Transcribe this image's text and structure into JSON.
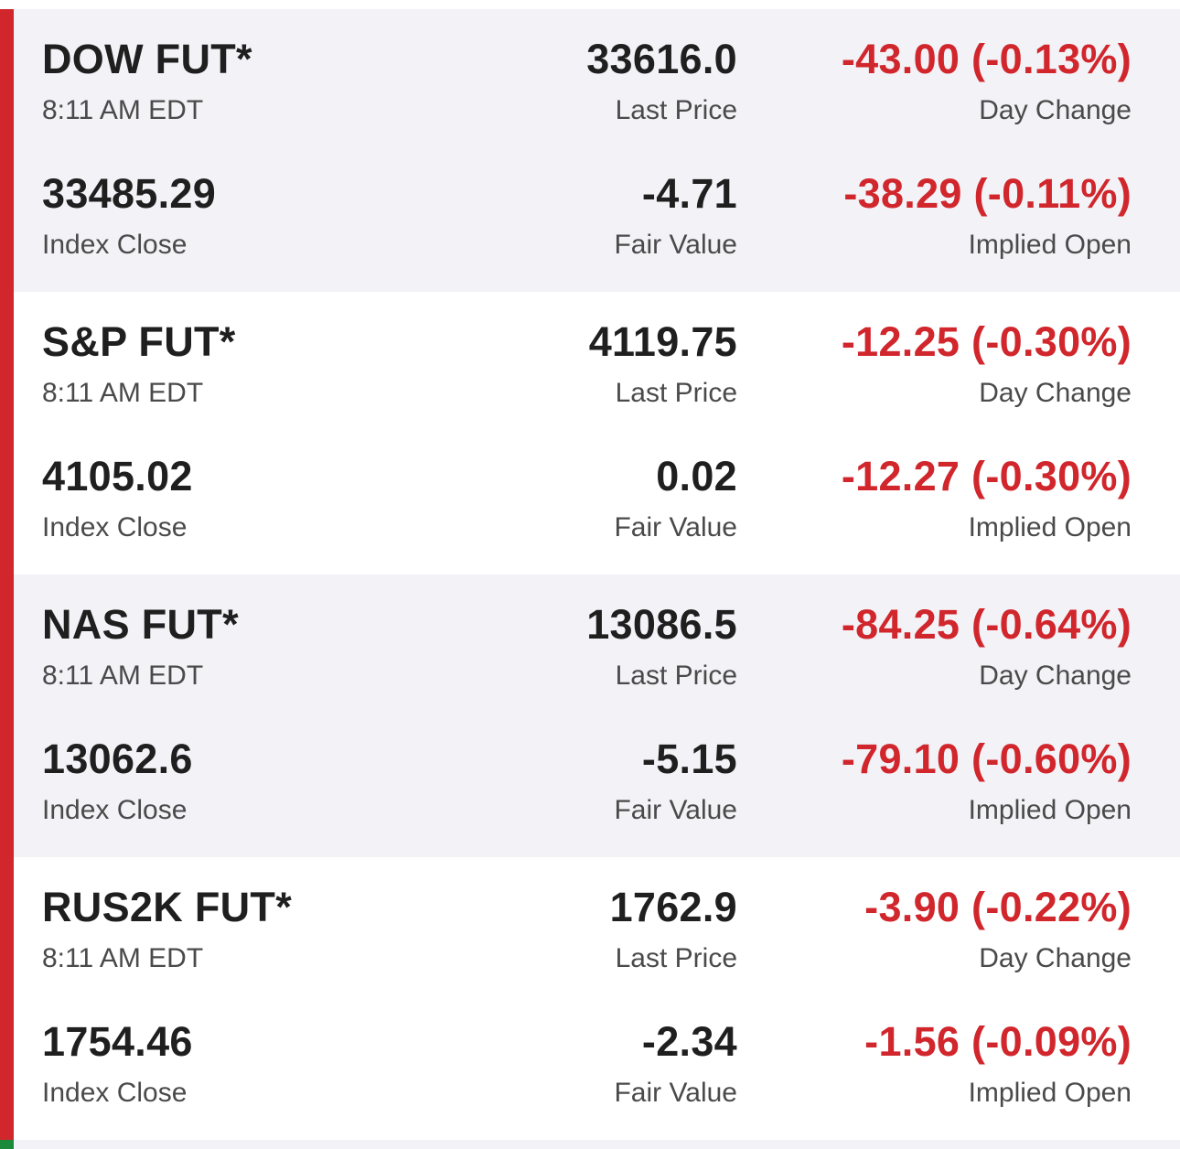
{
  "colors": {
    "negative": "#d0262c",
    "positive": "#1b8a3a",
    "shaded_bg": "#f2f2f7"
  },
  "futures": [
    {
      "name": "DOW FUT*",
      "time": "8:11 AM EDT",
      "last_price": "33616.0",
      "last_price_label": "Last Price",
      "day_change": "-43.00 (-0.13%)",
      "day_change_label": "Day Change",
      "index_close": "33485.29",
      "index_close_label": "Index Close",
      "fair_value": "-4.71",
      "fair_value_label": "Fair Value",
      "implied_open": "-38.29 (-0.11%)",
      "implied_open_label": "Implied Open"
    },
    {
      "name": "S&P FUT*",
      "time": "8:11 AM EDT",
      "last_price": "4119.75",
      "last_price_label": "Last Price",
      "day_change": "-12.25 (-0.30%)",
      "day_change_label": "Day Change",
      "index_close": "4105.02",
      "index_close_label": "Index Close",
      "fair_value": "0.02",
      "fair_value_label": "Fair Value",
      "implied_open": "-12.27 (-0.30%)",
      "implied_open_label": "Implied Open"
    },
    {
      "name": "NAS FUT*",
      "time": "8:11 AM EDT",
      "last_price": "13086.5",
      "last_price_label": "Last Price",
      "day_change": "-84.25 (-0.64%)",
      "day_change_label": "Day Change",
      "index_close": "13062.6",
      "index_close_label": "Index Close",
      "fair_value": "-5.15",
      "fair_value_label": "Fair Value",
      "implied_open": "-79.10 (-0.60%)",
      "implied_open_label": "Implied Open"
    },
    {
      "name": "RUS2K FUT*",
      "time": "8:11 AM EDT",
      "last_price": "1762.9",
      "last_price_label": "Last Price",
      "day_change": "-3.90 (-0.22%)",
      "day_change_label": "Day Change",
      "index_close": "1754.46",
      "index_close_label": "Index Close",
      "fair_value": "-2.34",
      "fair_value_label": "Fair Value",
      "implied_open": "-1.56 (-0.09%)",
      "implied_open_label": "Implied Open"
    }
  ]
}
